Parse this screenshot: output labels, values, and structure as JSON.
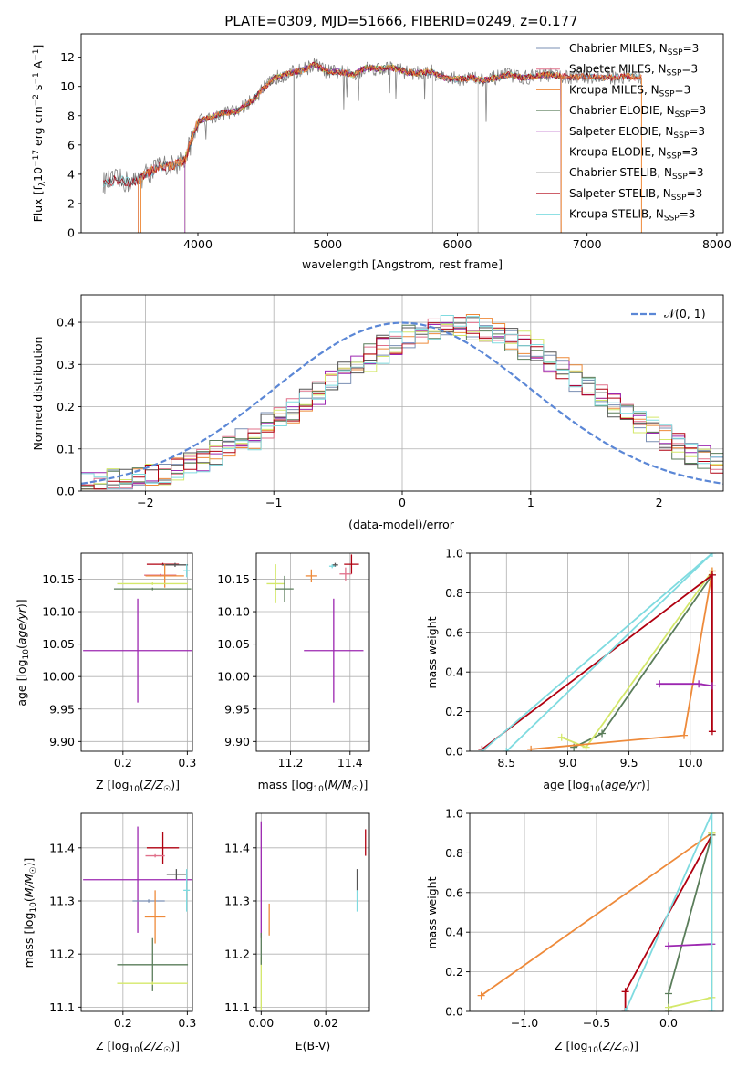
{
  "figure_title": "PLATE=0309, MJD=51666, FIBERID=0249, z=0.177",
  "colors": {
    "chabrier_miles": "#7a8fb3",
    "salpeter_miles": "#e0708a",
    "kroupa_miles": "#ee8a3a",
    "chabrier_elodie": "#5a7d5a",
    "salpeter_elodie": "#9c27b0",
    "kroupa_elodie": "#d4e86a",
    "chabrier_stelib": "#555555",
    "salpeter_stelib": "#b00010",
    "kroupa_stelib": "#7fdbe0",
    "data": "#808080",
    "normal": "#5b87d6",
    "grid": "#b0b0b0"
  },
  "chart_data": [
    {
      "id": "spectrum",
      "type": "line",
      "title": "PLATE=0309, MJD=51666, FIBERID=0249, z=0.177",
      "xlabel": "wavelength [Angstrom, rest frame]",
      "ylabel": "Flux [f_λ10^-17 erg cm^-2 s^-1 A^-1]",
      "xlim": [
        3100,
        8050
      ],
      "ylim": [
        0,
        13.6
      ],
      "xticks": [
        4000,
        5000,
        6000,
        7000,
        8000
      ],
      "yticks": [
        0,
        2,
        4,
        6,
        8,
        10,
        12
      ],
      "grid": false,
      "legend_position": "top-right",
      "legend": [
        "Chabrier MILES, N_SSP=3",
        "Salpeter MILES, N_SSP=3",
        "Kroupa MILES, N_SSP=3",
        "Chabrier ELODIE, N_SSP=3",
        "Salpeter ELODIE, N_SSP=3",
        "Kroupa ELODIE, N_SSP=3",
        "Chabrier STELIB, N_SSP=3",
        "Salpeter STELIB, N_SSP=3",
        "Kroupa STELIB, N_SSP=3"
      ],
      "continuum": [
        [
          3270,
          3.4
        ],
        [
          3380,
          3.6
        ],
        [
          3500,
          3.4
        ],
        [
          3600,
          4.0
        ],
        [
          3700,
          4.5
        ],
        [
          3800,
          4.6
        ],
        [
          3900,
          5.0
        ],
        [
          4000,
          7.6
        ],
        [
          4100,
          7.9
        ],
        [
          4200,
          8.2
        ],
        [
          4300,
          8.3
        ],
        [
          4400,
          8.9
        ],
        [
          4500,
          9.8
        ],
        [
          4600,
          10.6
        ],
        [
          4700,
          10.9
        ],
        [
          4800,
          11.1
        ],
        [
          4900,
          11.5
        ],
        [
          5000,
          11.0
        ],
        [
          5100,
          11.0
        ],
        [
          5200,
          10.8
        ],
        [
          5300,
          11.3
        ],
        [
          5400,
          11.2
        ],
        [
          5500,
          11.3
        ],
        [
          5600,
          11.0
        ],
        [
          5700,
          10.9
        ],
        [
          5800,
          11.0
        ],
        [
          5900,
          10.6
        ],
        [
          6000,
          10.5
        ],
        [
          6100,
          10.6
        ],
        [
          6200,
          10.4
        ],
        [
          6300,
          10.6
        ],
        [
          6400,
          10.8
        ],
        [
          6500,
          10.6
        ],
        [
          6600,
          10.7
        ],
        [
          6700,
          10.8
        ],
        [
          6800,
          10.7
        ],
        [
          6900,
          10.6
        ],
        [
          7000,
          10.7
        ],
        [
          7100,
          10.6
        ],
        [
          7200,
          10.6
        ],
        [
          7300,
          10.7
        ],
        [
          7400,
          10.6
        ]
      ]
    },
    {
      "id": "residuals",
      "type": "histogram",
      "xlabel": "(data-model)/error",
      "ylabel": "Normed distribution",
      "xlim": [
        -2.5,
        2.5
      ],
      "ylim": [
        0,
        0.465
      ],
      "xticks": [
        -2,
        -1,
        0,
        1,
        2
      ],
      "yticks": [
        0.0,
        0.1,
        0.2,
        0.3,
        0.4
      ],
      "grid": true,
      "legend_position": "top-right",
      "legend": [
        "𝒩(0, 1)"
      ],
      "normal_curve": {
        "mean": 0,
        "sigma": 1
      }
    },
    {
      "id": "age-vs-Z",
      "type": "errorbar",
      "xlabel": "Z [log10(Z/Z☉)]",
      "ylabel": "age [log10(age/yr)]",
      "xlim": [
        0.135,
        0.308
      ],
      "ylim": [
        9.885,
        10.19
      ],
      "xticks": [
        0.2,
        0.3
      ],
      "yticks": [
        9.9,
        9.95,
        10.0,
        10.05,
        10.1,
        10.15
      ],
      "grid": true,
      "points": [
        {
          "series": "salpeter_elodie",
          "x": 0.223,
          "xerr": 0.085,
          "y": 10.04,
          "yerr": 0.08
        },
        {
          "series": "salpeter_stelib",
          "x": 0.262,
          "xerr": 0.025,
          "y": 10.173,
          "yerr": 0.002
        },
        {
          "series": "chabrier_stelib",
          "x": 0.281,
          "xerr": 0.02,
          "y": 10.172,
          "yerr": 0.003
        },
        {
          "series": "kroupa_stelib",
          "x": 0.299,
          "xerr": 0.005,
          "y": 10.163,
          "yerr": 0.01
        },
        {
          "series": "salpeter_miles",
          "x": 0.258,
          "xerr": 0.025,
          "y": 10.156,
          "yerr": 0.002
        },
        {
          "series": "kroupa_miles",
          "x": 0.265,
          "xerr": 0.03,
          "y": 10.155,
          "yerr": 0.018
        },
        {
          "series": "kroupa_elodie",
          "x": 0.246,
          "xerr": 0.055,
          "y": 10.143,
          "yerr": 0.002
        },
        {
          "series": "chabrier_elodie",
          "x": 0.246,
          "xerr": 0.06,
          "y": 10.135,
          "yerr": 0.002
        }
      ]
    },
    {
      "id": "age-vs-mass",
      "type": "errorbar",
      "xlabel": "mass [log10(M/M☉)]",
      "ylabel": "",
      "xlim": [
        11.085,
        11.465
      ],
      "ylim": [
        9.885,
        10.19
      ],
      "xticks": [
        11.2,
        11.4
      ],
      "yticks": [
        9.9,
        9.95,
        10.0,
        10.05,
        10.1,
        10.15
      ],
      "grid": true,
      "points": [
        {
          "series": "salpeter_elodie",
          "x": 11.345,
          "xerr": 0.1,
          "y": 10.04,
          "yerr": 0.08
        },
        {
          "series": "salpeter_stelib",
          "x": 11.405,
          "xerr": 0.025,
          "y": 10.173,
          "yerr": 0.015
        },
        {
          "series": "chabrier_stelib",
          "x": 11.35,
          "xerr": 0.01,
          "y": 10.172,
          "yerr": 0.003
        },
        {
          "series": "kroupa_stelib",
          "x": 11.34,
          "xerr": 0.01,
          "y": 10.17,
          "yerr": 0.003
        },
        {
          "series": "salpeter_miles",
          "x": 11.385,
          "xerr": 0.02,
          "y": 10.158,
          "yerr": 0.01
        },
        {
          "series": "kroupa_miles",
          "x": 11.27,
          "xerr": 0.02,
          "y": 10.155,
          "yerr": 0.01
        },
        {
          "series": "kroupa_elodie",
          "x": 11.15,
          "xerr": 0.03,
          "y": 10.143,
          "yerr": 0.03
        },
        {
          "series": "chabrier_elodie",
          "x": 11.18,
          "xerr": 0.03,
          "y": 10.135,
          "yerr": 0.02
        }
      ]
    },
    {
      "id": "weight-vs-age",
      "type": "line",
      "xlabel": "age [log10(age/yr)]",
      "ylabel": "mass weight",
      "xlim": [
        8.2,
        10.27
      ],
      "ylim": [
        0,
        1
      ],
      "xticks": [
        8.5,
        9.0,
        9.5,
        10.0
      ],
      "yticks": [
        0.0,
        0.2,
        0.4,
        0.6,
        0.8,
        1.0
      ],
      "grid": true,
      "series": [
        {
          "series": "chabrier_elodie",
          "points": [
            [
              9.05,
              0.02
            ],
            [
              9.28,
              0.09
            ],
            [
              10.18,
              0.89
            ]
          ]
        },
        {
          "series": "kroupa_elodie",
          "points": [
            [
              8.95,
              0.07
            ],
            [
              9.15,
              0.02
            ],
            [
              10.18,
              0.91
            ]
          ]
        },
        {
          "series": "kroupa_miles",
          "points": [
            [
              8.7,
              0.01
            ],
            [
              9.95,
              0.08
            ],
            [
              10.18,
              0.91
            ]
          ]
        },
        {
          "series": "salpeter_stelib",
          "points": [
            [
              8.3,
              0.01
            ],
            [
              10.18,
              0.89
            ],
            [
              10.18,
              0.1
            ]
          ]
        },
        {
          "series": "salpeter_elodie",
          "points": [
            [
              9.75,
              0.34
            ],
            [
              10.07,
              0.34
            ],
            [
              10.18,
              0.33
            ]
          ]
        },
        {
          "series": "kroupa_stelib",
          "points": [
            [
              8.5,
              0.0
            ],
            [
              10.18,
              1.0
            ],
            [
              8.3,
              0.0
            ]
          ]
        }
      ]
    },
    {
      "id": "mass-vs-Z",
      "type": "errorbar",
      "xlabel": "Z [log10(Z/Z☉)]",
      "ylabel": "mass [log10(M/M☉)]",
      "xlim": [
        0.135,
        0.308
      ],
      "ylim": [
        11.092,
        11.465
      ],
      "xticks": [
        0.2,
        0.3
      ],
      "yticks": [
        11.1,
        11.2,
        11.3,
        11.4
      ],
      "grid": true,
      "points": [
        {
          "series": "salpeter_stelib",
          "x": 0.262,
          "xerr": 0.025,
          "y": 11.4,
          "yerr": 0.03
        },
        {
          "series": "salpeter_miles",
          "x": 0.25,
          "xerr": 0.015,
          "y": 11.385,
          "yerr": 0.003
        },
        {
          "series": "salpeter_elodie",
          "x": 0.223,
          "xerr": 0.085,
          "y": 11.34,
          "yerr": 0.1
        },
        {
          "series": "chabrier_stelib",
          "x": 0.283,
          "xerr": 0.015,
          "y": 11.35,
          "yerr": 0.01
        },
        {
          "series": "kroupa_stelib",
          "x": 0.299,
          "xerr": 0.005,
          "y": 11.32,
          "yerr": 0.04
        },
        {
          "series": "chabrier_miles",
          "x": 0.24,
          "xerr": 0.025,
          "y": 11.3,
          "yerr": 0.003
        },
        {
          "series": "kroupa_miles",
          "x": 0.25,
          "xerr": 0.016,
          "y": 11.27,
          "yerr": 0.05
        },
        {
          "series": "chabrier_elodie",
          "x": 0.246,
          "xerr": 0.055,
          "y": 11.18,
          "yerr": 0.05
        },
        {
          "series": "kroupa_elodie",
          "x": 0.246,
          "xerr": 0.055,
          "y": 11.145,
          "yerr": 0.003
        }
      ]
    },
    {
      "id": "mass-vs-ebv",
      "type": "errorbar",
      "xlabel": "E(B-V)",
      "ylabel": "",
      "xlim": [
        -0.0015,
        0.0335
      ],
      "ylim": [
        11.092,
        11.465
      ],
      "xticks": [
        0.0,
        0.02
      ],
      "yticks": [
        11.1,
        11.2,
        11.3,
        11.4
      ],
      "grid": true,
      "points": [
        {
          "series": "salpeter_elodie",
          "x": 0.0,
          "xerr": 0,
          "y": 11.34,
          "yerr": 0.11
        },
        {
          "series": "kroupa_elodie",
          "x": 0.0,
          "xerr": 0,
          "y": 11.145,
          "yerr": 0.05
        },
        {
          "series": "chabrier_elodie",
          "x": 0.0,
          "xerr": 0,
          "y": 11.21,
          "yerr": 0.03
        },
        {
          "series": "kroupa_miles",
          "x": 0.0025,
          "xerr": 0,
          "y": 11.265,
          "yerr": 0.03
        },
        {
          "series": "salpeter_stelib",
          "x": 0.0323,
          "xerr": 0,
          "y": 11.41,
          "yerr": 0.025
        },
        {
          "series": "chabrier_stelib",
          "x": 0.0297,
          "xerr": 0,
          "y": 11.34,
          "yerr": 0.02
        },
        {
          "series": "kroupa_stelib",
          "x": 0.0297,
          "xerr": 0,
          "y": 11.3,
          "yerr": 0.02
        }
      ]
    },
    {
      "id": "weight-vs-Z",
      "type": "line",
      "xlabel": "Z [log10(Z/Z☉)]",
      "ylabel": "mass weight",
      "xlim": [
        -1.38,
        0.38
      ],
      "ylim": [
        0,
        1
      ],
      "xticks": [
        -1.0,
        -0.5,
        0.0
      ],
      "yticks": [
        0.0,
        0.2,
        0.4,
        0.6,
        0.8,
        1.0
      ],
      "grid": true,
      "series": [
        {
          "series": "kroupa_miles",
          "points": [
            [
              -1.3,
              0.08
            ],
            [
              0.3,
              0.9
            ]
          ]
        },
        {
          "series": "salpeter_stelib",
          "points": [
            [
              -0.3,
              0.0
            ],
            [
              -0.3,
              0.1
            ],
            [
              0.3,
              0.89
            ]
          ]
        },
        {
          "series": "chabrier_elodie",
          "points": [
            [
              0.0,
              0.0
            ],
            [
              0.0,
              0.09
            ],
            [
              0.3,
              0.89
            ]
          ]
        },
        {
          "series": "kroupa_elodie",
          "points": [
            [
              0.0,
              0.02
            ],
            [
              0.3,
              0.07
            ],
            [
              0.3,
              0.9
            ]
          ]
        },
        {
          "series": "salpeter_elodie",
          "points": [
            [
              0.0,
              0.33
            ],
            [
              0.3,
              0.34
            ]
          ]
        },
        {
          "series": "kroupa_stelib",
          "points": [
            [
              -0.3,
              0.0
            ],
            [
              0.3,
              1.0
            ],
            [
              0.3,
              0.0
            ]
          ]
        }
      ]
    }
  ]
}
